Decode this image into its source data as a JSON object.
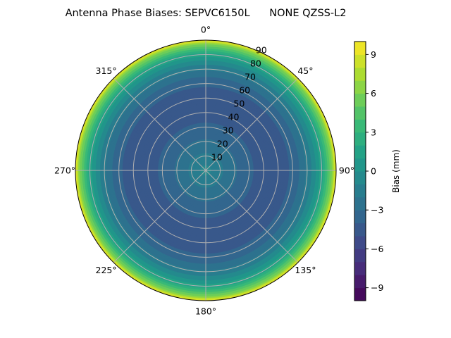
{
  "chart_data": {
    "type": "contour",
    "projection": "polar",
    "title": "Antenna Phase Biases: SEPVC6150L      NONE QZSS-L2",
    "theta_direction": "clockwise",
    "theta_zero": "north",
    "theta_ticks": [
      "0°",
      "45°",
      "90°",
      "135°",
      "180°",
      "225°",
      "270°",
      "315°"
    ],
    "theta_tick_values": [
      0,
      45,
      90,
      135,
      180,
      225,
      270,
      315
    ],
    "r_ticks": [
      "10",
      "20",
      "30",
      "40",
      "50",
      "60",
      "70",
      "80",
      "90"
    ],
    "r_tick_values": [
      10,
      20,
      30,
      40,
      50,
      60,
      70,
      80,
      90
    ],
    "rlim": [
      0,
      90
    ],
    "grid": true,
    "colormap": "viridis",
    "colorbar": {
      "label": "Bias (mm)",
      "range": [
        -10,
        10
      ],
      "level_step": 1,
      "ticks": [
        "−9",
        "−6",
        "−3",
        "0",
        "3",
        "6",
        "9"
      ],
      "tick_values": [
        -9,
        -6,
        -3,
        0,
        3,
        6,
        9
      ]
    },
    "radial_profile": {
      "zenith_deg": [
        0,
        5,
        10,
        17,
        26,
        40,
        52,
        60,
        67,
        75,
        82,
        87,
        90
      ],
      "bias_mm": [
        -0.5,
        -1.2,
        -1.8,
        -2.5,
        -3.5,
        -4.5,
        -4.5,
        -3.8,
        -2.5,
        -0.5,
        2.5,
        6.0,
        9.5
      ]
    }
  }
}
